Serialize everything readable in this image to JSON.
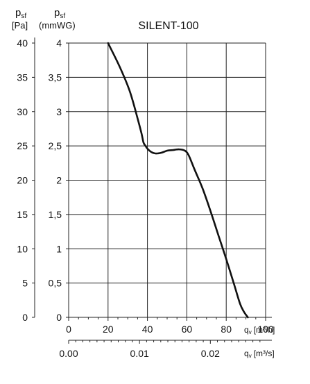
{
  "chart_data": {
    "type": "line",
    "title": "SILENT-100",
    "y_axis_left": {
      "label_main": "p",
      "label_sub": "sf",
      "unit": "[Pa]",
      "ylim": [
        0,
        40
      ],
      "ticks": [
        0,
        5,
        10,
        15,
        20,
        25,
        30,
        35,
        40
      ],
      "tick_labels": [
        "0",
        "5",
        "10",
        "15",
        "20",
        "25",
        "30",
        "35",
        "40"
      ]
    },
    "y_axis_right": {
      "label_main": "p",
      "label_sub": "sf",
      "unit": "(mmWG)",
      "ylim": [
        0,
        4
      ],
      "ticks": [
        0,
        0.5,
        1,
        1.5,
        2,
        2.5,
        3,
        3.5,
        4
      ],
      "tick_labels": [
        "0",
        "0,5",
        "1",
        "1,5",
        "2",
        "2,5",
        "3",
        "3,5",
        "4"
      ]
    },
    "x_axis_primary": {
      "label_main": "q",
      "label_sub": "v",
      "unit": "[m³/h]",
      "xlim": [
        0,
        100
      ],
      "ticks": [
        0,
        20,
        40,
        60,
        80,
        100
      ],
      "tick_labels": [
        "0",
        "20",
        "40",
        "60",
        "80",
        "100"
      ]
    },
    "x_axis_secondary": {
      "label_main": "q",
      "label_sub": "v",
      "unit": "[m³/s]",
      "xlim": [
        0,
        0.0278
      ],
      "ticks": [
        0,
        0.01,
        0.02
      ],
      "tick_labels": [
        "0.00",
        "0.01",
        "0.02"
      ]
    },
    "grid": true,
    "series": [
      {
        "x": [
          20,
          26,
          31,
          35,
          37,
          38,
          39,
          40,
          42,
          44,
          47,
          50,
          53,
          56,
          59,
          61,
          64,
          68,
          72,
          76,
          80,
          84,
          87,
          89,
          91
        ],
        "y": [
          40,
          36.5,
          33,
          29,
          26.8,
          25.5,
          25,
          24.6,
          24.1,
          23.9,
          24,
          24.3,
          24.4,
          24.5,
          24.3,
          23.6,
          21.5,
          18.8,
          15.5,
          12,
          8.5,
          4.8,
          2,
          0.8,
          0
        ],
        "color": "#111111"
      }
    ]
  }
}
